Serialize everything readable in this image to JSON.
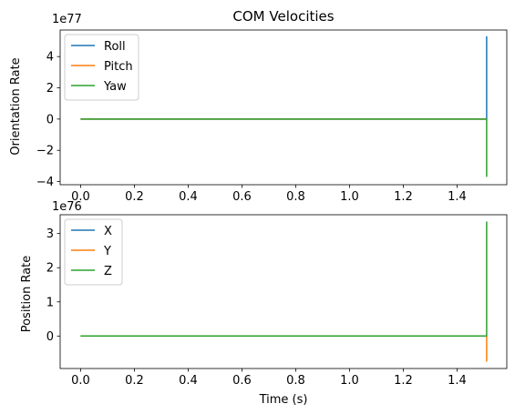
{
  "chart_data": [
    {
      "type": "line",
      "title": "COM Velocities",
      "xlabel": "",
      "ylabel": "Orientation Rate",
      "y_offset_text": "1e77",
      "xlim": [
        -0.076,
        1.585
      ],
      "ylim": [
        -4.2,
        5.7
      ],
      "x_ticks": [
        0.0,
        0.2,
        0.4,
        0.6,
        0.8,
        1.0,
        1.2,
        1.4
      ],
      "x_tick_labels": [
        "0.0",
        "0.2",
        "0.4",
        "0.6",
        "0.8",
        "1.0",
        "1.2",
        "1.4"
      ],
      "y_ticks": [
        -4,
        -2,
        0,
        2,
        4
      ],
      "y_tick_labels": [
        "−4",
        "−2",
        "0",
        "2",
        "4"
      ],
      "legend_position": "upper-left",
      "grid": false,
      "series": [
        {
          "name": "Roll",
          "color": "#1f77b4",
          "x": [
            0.0,
            1.505,
            1.51,
            1.51
          ],
          "y": [
            0,
            0,
            0,
            5.3
          ]
        },
        {
          "name": "Pitch",
          "color": "#ff7f0e",
          "x": [
            0.0,
            1.505,
            1.51,
            1.51
          ],
          "y": [
            0,
            0,
            0,
            0
          ]
        },
        {
          "name": "Yaw",
          "color": "#2ca02c",
          "x": [
            0.0,
            1.505,
            1.51,
            1.51
          ],
          "y": [
            0,
            0,
            0,
            -3.7
          ]
        }
      ]
    },
    {
      "type": "line",
      "title": "",
      "xlabel": "Time (s)",
      "ylabel": "Position Rate",
      "y_offset_text": "1e76",
      "xlim": [
        -0.076,
        1.585
      ],
      "ylim": [
        -0.95,
        3.55
      ],
      "x_ticks": [
        0.0,
        0.2,
        0.4,
        0.6,
        0.8,
        1.0,
        1.2,
        1.4
      ],
      "x_tick_labels": [
        "0.0",
        "0.2",
        "0.4",
        "0.6",
        "0.8",
        "1.0",
        "1.2",
        "1.4"
      ],
      "y_ticks": [
        0,
        1,
        2,
        3
      ],
      "y_tick_labels": [
        "0",
        "1",
        "2",
        "3"
      ],
      "legend_position": "upper-left",
      "grid": false,
      "series": [
        {
          "name": "X",
          "color": "#1f77b4",
          "x": [
            0.0,
            1.505,
            1.51,
            1.51
          ],
          "y": [
            0,
            0,
            0,
            0
          ]
        },
        {
          "name": "Y",
          "color": "#ff7f0e",
          "x": [
            0.0,
            1.505,
            1.51,
            1.51
          ],
          "y": [
            0,
            0,
            0,
            -0.75
          ]
        },
        {
          "name": "Z",
          "color": "#2ca02c",
          "x": [
            0.0,
            1.505,
            1.51,
            1.51
          ],
          "y": [
            0,
            0,
            0,
            3.35
          ]
        }
      ]
    }
  ]
}
